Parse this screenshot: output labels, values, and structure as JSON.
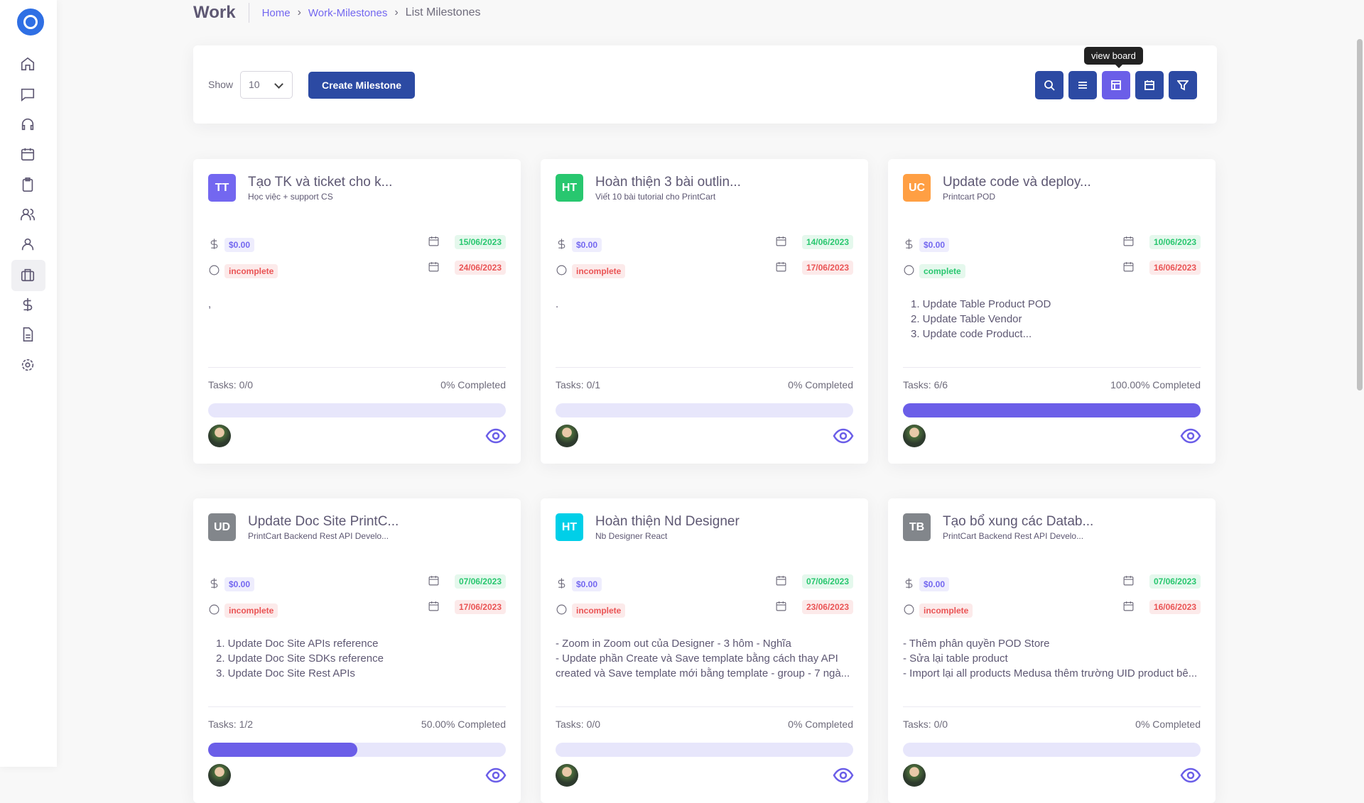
{
  "header": {
    "title": "Work",
    "breadcrumb": [
      "Home",
      "Work-Milestones",
      "List Milestones"
    ]
  },
  "toolbar": {
    "show_label": "Show",
    "page_size": "10",
    "create_button": "Create Milestone",
    "tooltip": "view board"
  },
  "cards": [
    {
      "initials": "TT",
      "color": "#7367f0",
      "title": "Tạo TK và ticket cho k...",
      "subtitle": "Học việc + support CS",
      "budget": "$0.00",
      "status": "incomplete",
      "start": "15/06/2023",
      "end": "24/06/2023",
      "description": [
        ","
      ],
      "ordered": false,
      "tasks": "Tasks: 0/0",
      "completed": "0% Completed",
      "progress": 0
    },
    {
      "initials": "HT",
      "color": "#28c76f",
      "title": "Hoàn thiện 3 bài outlin...",
      "subtitle": "Viết 10 bài tutorial cho PrintCart",
      "budget": "$0.00",
      "status": "incomplete",
      "start": "14/06/2023",
      "end": "17/06/2023",
      "description": [
        "."
      ],
      "ordered": false,
      "tasks": "Tasks: 0/1",
      "completed": "0% Completed",
      "progress": 0
    },
    {
      "initials": "UC",
      "color": "#ff9f43",
      "title": "Update code và deploy...",
      "subtitle": "Printcart POD",
      "budget": "$0.00",
      "status": "complete",
      "start": "10/06/2023",
      "end": "16/06/2023",
      "description": [
        "1. Update Table Product POD",
        "2. Update Table Vendor",
        "3. Update code Product..."
      ],
      "ordered": true,
      "tasks": "Tasks: 6/6",
      "completed": "100.00% Completed",
      "progress": 100
    },
    {
      "initials": "UD",
      "color": "#82868b",
      "title": "Update Doc Site PrintC...",
      "subtitle": "PrintCart Backend Rest API Develo...",
      "budget": "$0.00",
      "status": "incomplete",
      "start": "07/06/2023",
      "end": "17/06/2023",
      "description": [
        "1. Update Doc Site APIs reference",
        "2. Update Doc Site SDKs reference",
        "3. Update Doc Site Rest APIs"
      ],
      "ordered": true,
      "tasks": "Tasks: 1/2",
      "completed": "50.00% Completed",
      "progress": 50
    },
    {
      "initials": "HT",
      "color": "#00cfe8",
      "title": "Hoàn thiện Nd Designer",
      "subtitle": "Nb Designer React",
      "budget": "$0.00",
      "status": "incomplete",
      "start": "07/06/2023",
      "end": "23/06/2023",
      "description": [
        "- Zoom in Zoom out của Designer - 3 hôm - Nghĩa",
        "- Update phần Create và Save template bằng cách thay API",
        "created và Save template mới bằng template - group - 7 ngà..."
      ],
      "ordered": false,
      "tasks": "Tasks: 0/0",
      "completed": "0% Completed",
      "progress": 0
    },
    {
      "initials": "TB",
      "color": "#82868b",
      "title": "Tạo bổ xung các Datab...",
      "subtitle": "PrintCart Backend Rest API Develo...",
      "budget": "$0.00",
      "status": "incomplete",
      "start": "07/06/2023",
      "end": "16/06/2023",
      "description": [
        "- Thêm phân quyền POD Store",
        "- Sửa lại table product",
        "- Import lại all products Medusa thêm trường UID product bê..."
      ],
      "ordered": false,
      "tasks": "Tasks: 0/0",
      "completed": "0% Completed",
      "progress": 0
    }
  ]
}
